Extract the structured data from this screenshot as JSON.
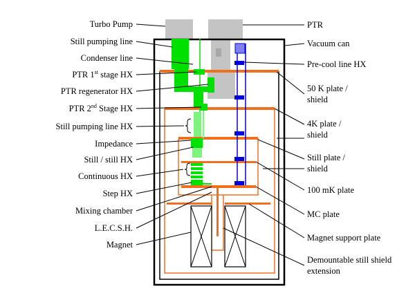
{
  "diagram": {
    "left_labels": [
      {
        "id": "turbo-pump",
        "text": "Turbo Pump"
      },
      {
        "id": "still-pumping-line",
        "text": "Still pumping line"
      },
      {
        "id": "condenser-line",
        "text": "Condenser line"
      },
      {
        "id": "ptr-1st-stage-hx",
        "pre": "PTR 1",
        "sup": "st",
        "post": " stage HX"
      },
      {
        "id": "ptr-regenerator-hx",
        "text": "PTR regenerator HX"
      },
      {
        "id": "ptr-2nd-stage-hx",
        "pre": "PTR 2",
        "sup": "nd",
        "post": " Stage HX"
      },
      {
        "id": "still-pumping-line-hx",
        "text": "Still pumping line HX"
      },
      {
        "id": "impedance",
        "text": "Impedance"
      },
      {
        "id": "still-still-hx",
        "text": "Still / still HX"
      },
      {
        "id": "continuous-hx",
        "text": "Continuous HX"
      },
      {
        "id": "step-hx",
        "text": "Step HX"
      },
      {
        "id": "mixing-chamber",
        "text": "Mixing chamber"
      },
      {
        "id": "lecsh",
        "text": "L.E.C.S.H."
      },
      {
        "id": "magnet",
        "text": "Magnet"
      }
    ],
    "right_labels": [
      {
        "id": "ptr",
        "text": "PTR"
      },
      {
        "id": "vacuum-can",
        "text": "Vacuum can"
      },
      {
        "id": "pre-cool-line-hx",
        "text": "Pre-cool line HX"
      },
      {
        "id": "50k-plate-shield",
        "line1": "50 K plate /",
        "line2": "shield"
      },
      {
        "id": "4k-plate-shield",
        "line1": "4K plate /",
        "line2": "shield"
      },
      {
        "id": "still-plate-shield",
        "line1": "Still plate /",
        "line2": "shield"
      },
      {
        "id": "100mk-plate",
        "text": "100 mK plate"
      },
      {
        "id": "mc-plate",
        "text": "MC plate"
      },
      {
        "id": "magnet-support-plate",
        "text": "Magnet support plate"
      },
      {
        "id": "demountable-still-shield",
        "line1": "Demountable still shield",
        "line2": "extension"
      }
    ],
    "colors": {
      "green": "#00e000",
      "light_green": "#7ff27f",
      "orange": "#f07020",
      "blue": "#0000dd",
      "gray": "#c4c4c4",
      "black": "#000000"
    }
  }
}
